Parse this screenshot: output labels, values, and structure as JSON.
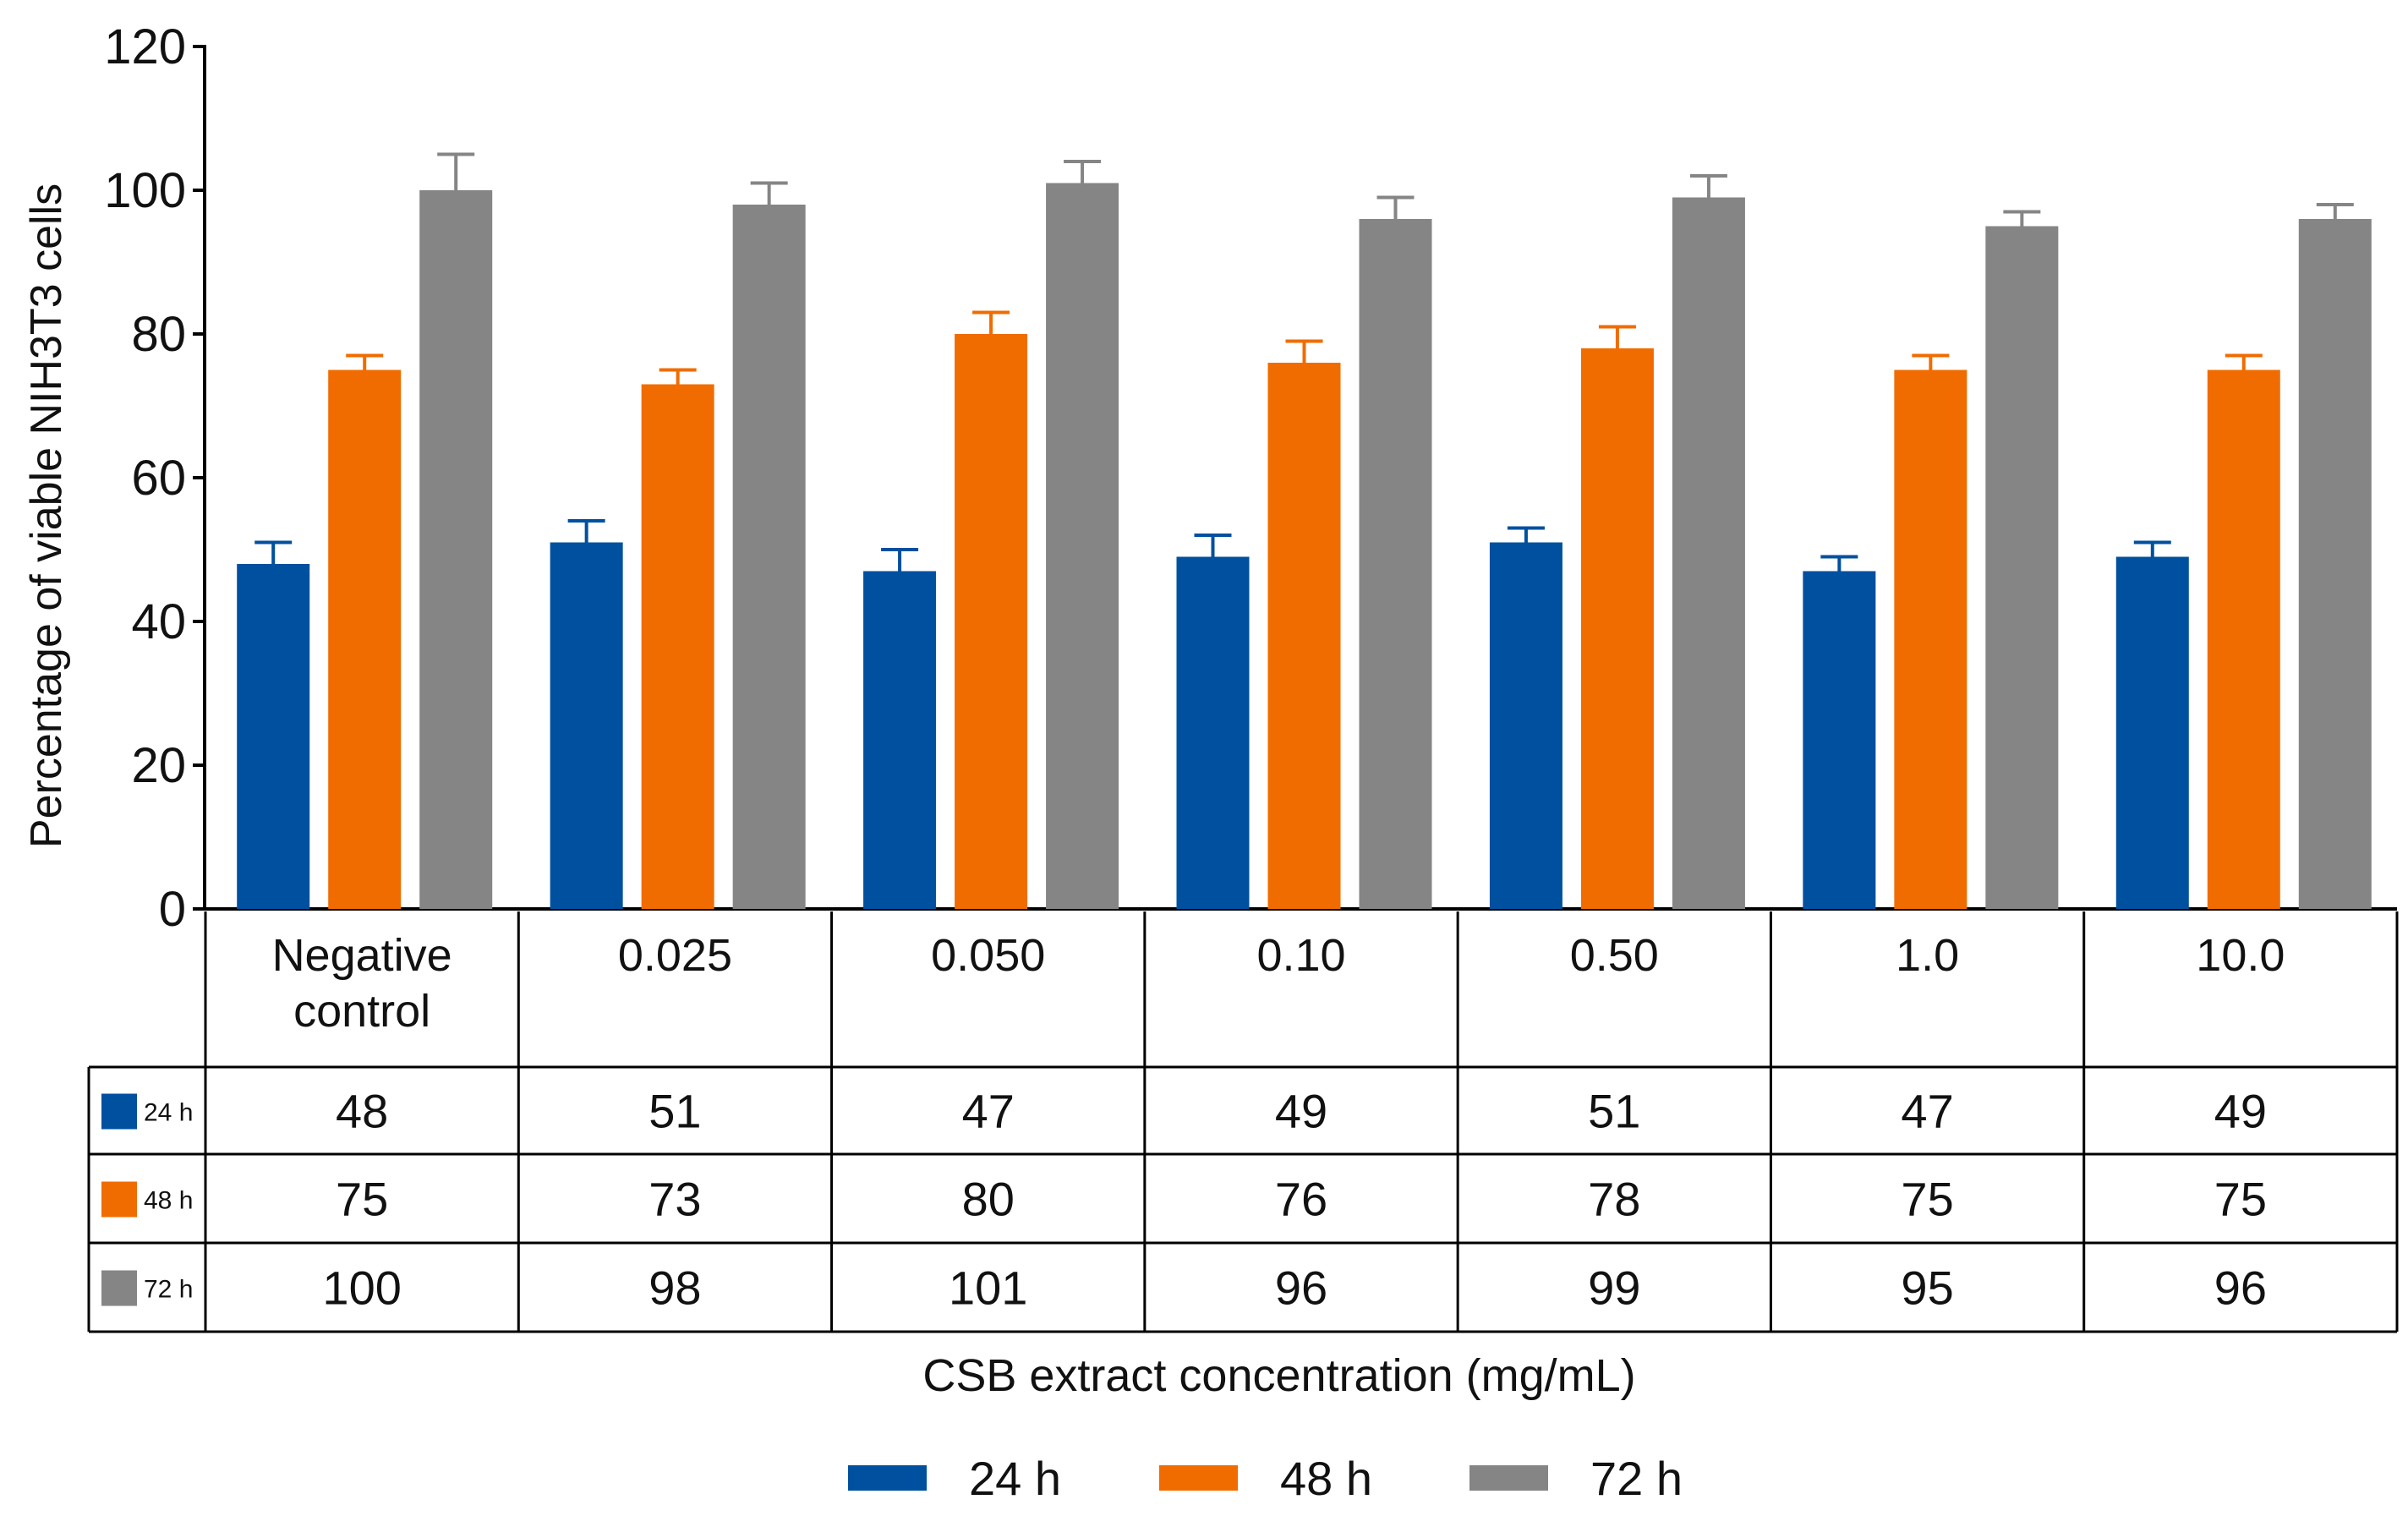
{
  "chart_data": {
    "type": "bar",
    "title": "",
    "ylabel": "Percentage of viable NIH3T3 cells",
    "xlabel": "CSB extract concentration (mg/mL)",
    "ylim": [
      0,
      120
    ],
    "yticks": [
      0,
      20,
      40,
      60,
      80,
      100,
      120
    ],
    "grid": false,
    "legend_position": "bottom-center",
    "categories": [
      "Negative\ncontrol",
      "0.025",
      "0.050",
      "0.10",
      "0.50",
      "1.0",
      "10.0"
    ],
    "series": [
      {
        "name": "24 h",
        "short": "24 h",
        "color": "#0050a0",
        "values": [
          48,
          51,
          47,
          49,
          51,
          47,
          49
        ],
        "errors": [
          3,
          3,
          3,
          3,
          2,
          2,
          2
        ]
      },
      {
        "name": "48 h",
        "short": "48 h",
        "color": "#f06c00",
        "values": [
          75,
          73,
          80,
          76,
          78,
          75,
          75
        ],
        "errors": [
          2,
          2,
          3,
          3,
          3,
          2,
          2
        ]
      },
      {
        "name": "72 h",
        "short": "72 h",
        "color": "#858585",
        "values": [
          100,
          98,
          101,
          96,
          99,
          95,
          96
        ],
        "errors": [
          5,
          3,
          3,
          3,
          3,
          2,
          2
        ]
      }
    ],
    "table": {
      "rows": [
        [
          "48",
          "51",
          "47",
          "49",
          "51",
          "47",
          "49"
        ],
        [
          "75",
          "73",
          "80",
          "76",
          "78",
          "75",
          "75"
        ],
        [
          "100",
          "98",
          "101",
          "96",
          "99",
          "95",
          "96"
        ]
      ]
    }
  }
}
